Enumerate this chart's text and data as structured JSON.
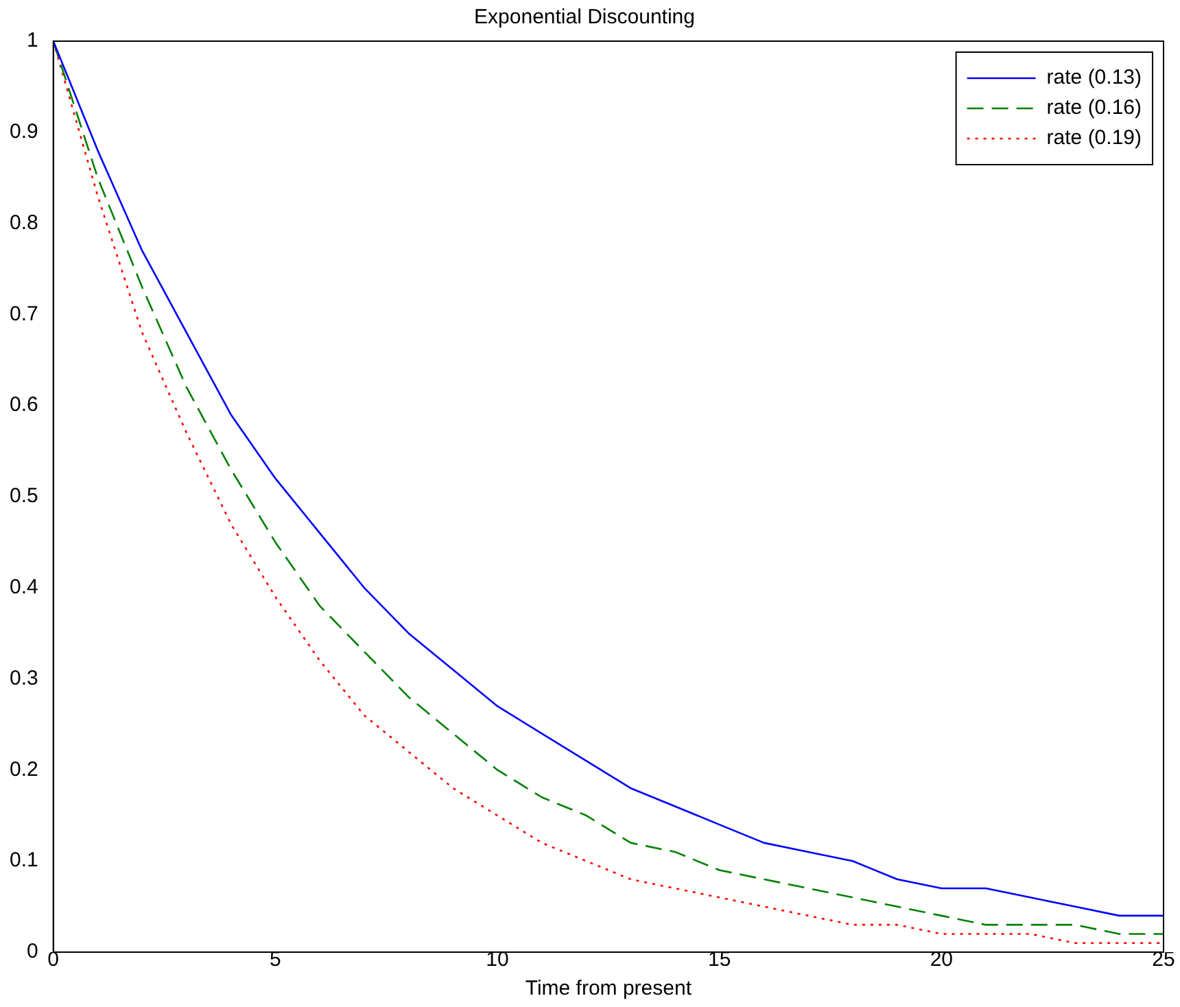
{
  "chart_data": {
    "type": "line",
    "title": "Exponential Discounting",
    "xlabel": "Time from present",
    "x": [
      0,
      1,
      2,
      3,
      4,
      5,
      6,
      7,
      8,
      9,
      10,
      11,
      12,
      13,
      14,
      15,
      16,
      17,
      18,
      19,
      20,
      21,
      22,
      23,
      24,
      25
    ],
    "series": [
      {
        "name": "rate (0.13)",
        "color": "#0000ff",
        "line_style": "solid",
        "values": [
          1,
          0.88,
          0.77,
          0.68,
          0.59,
          0.52,
          0.46,
          0.4,
          0.35,
          0.31,
          0.27,
          0.24,
          0.21,
          0.18,
          0.16,
          0.14,
          0.12,
          0.11,
          0.1,
          0.08,
          0.07,
          0.07,
          0.06,
          0.05,
          0.04,
          0.04
        ]
      },
      {
        "name": "rate (0.16)",
        "color": "#008000",
        "line_style": "dashed",
        "values": [
          1,
          0.85,
          0.73,
          0.62,
          0.53,
          0.45,
          0.38,
          0.33,
          0.28,
          0.24,
          0.2,
          0.17,
          0.15,
          0.12,
          0.11,
          0.09,
          0.08,
          0.07,
          0.06,
          0.05,
          0.04,
          0.03,
          0.03,
          0.03,
          0.02,
          0.02
        ]
      },
      {
        "name": "rate (0.19)",
        "color": "#ff0000",
        "line_style": "dotted",
        "values": [
          1,
          0.83,
          0.68,
          0.57,
          0.47,
          0.39,
          0.32,
          0.26,
          0.22,
          0.18,
          0.15,
          0.12,
          0.1,
          0.08,
          0.07,
          0.06,
          0.05,
          0.04,
          0.03,
          0.03,
          0.02,
          0.02,
          0.02,
          0.01,
          0.01,
          0.01
        ]
      }
    ],
    "xlim": [
      0,
      25
    ],
    "xticks": [
      0,
      5,
      10,
      15,
      20,
      25
    ],
    "ylim": [
      0,
      1
    ],
    "yticks": [
      0,
      0.1,
      0.2,
      0.3,
      0.4,
      0.5,
      0.6,
      0.7,
      0.8,
      0.9,
      1
    ],
    "grid": false,
    "legend": "top right",
    "marker": "none"
  }
}
